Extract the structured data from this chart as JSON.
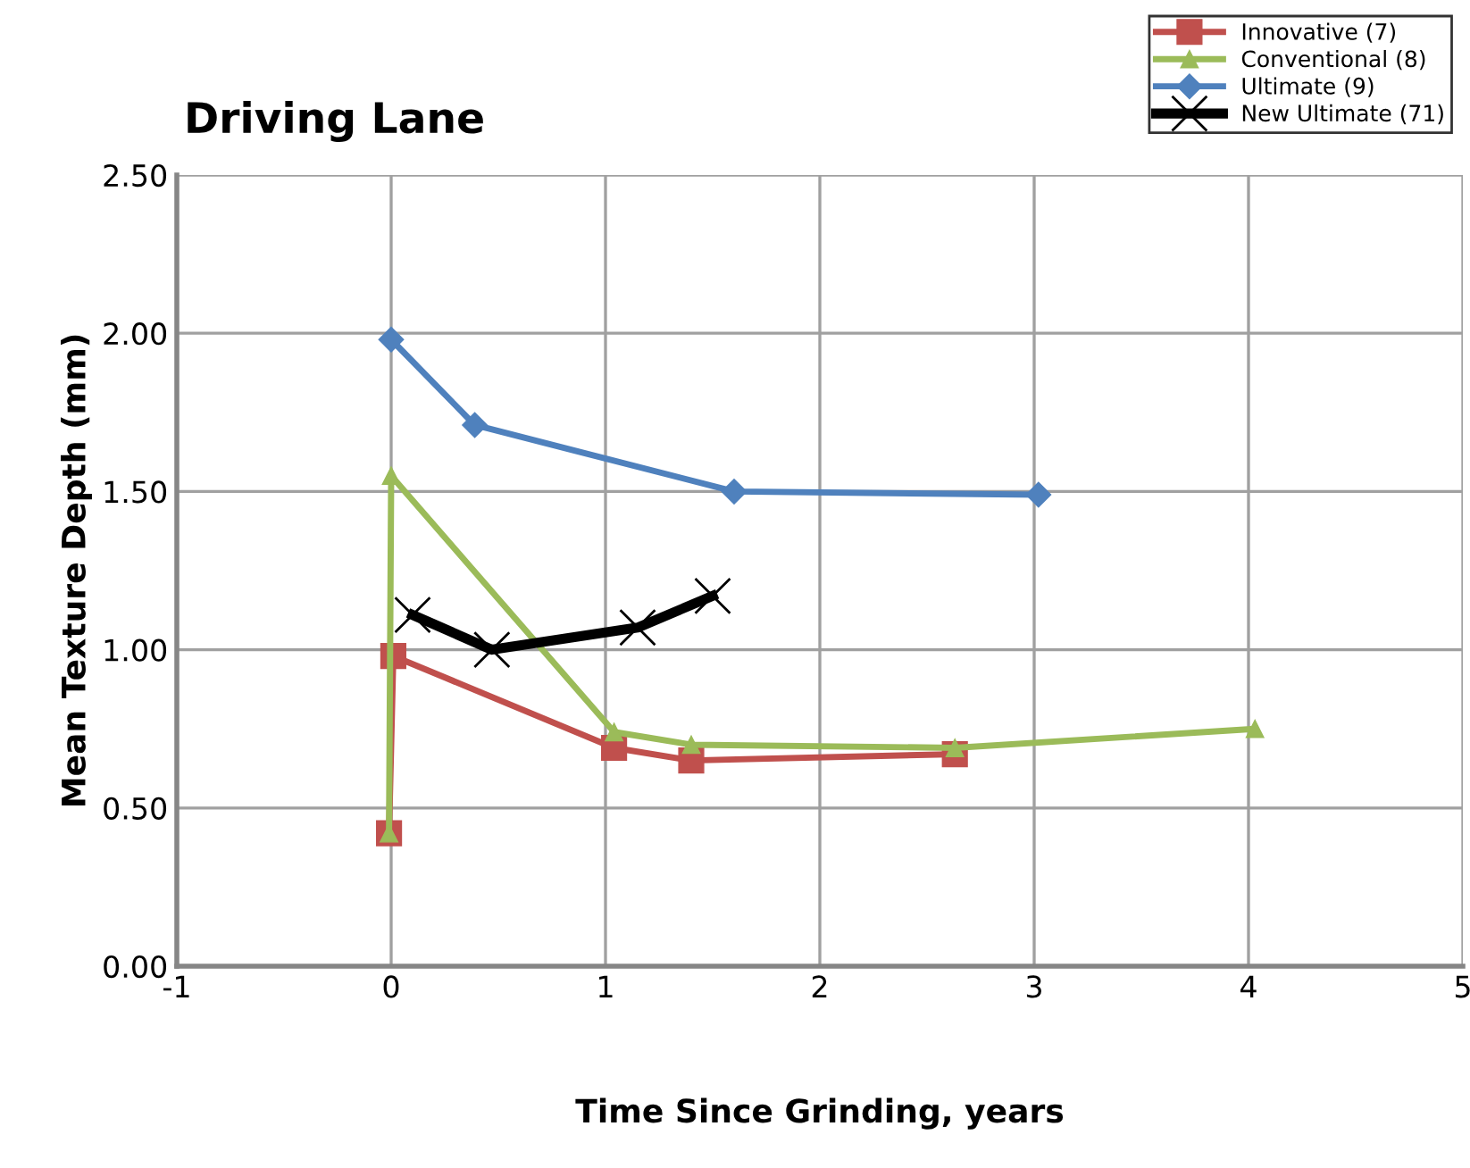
{
  "chart_data": {
    "type": "line",
    "title": "Driving Lane",
    "xlabel": "Time Since Grinding, years",
    "ylabel": "Mean Texture Depth (mm)",
    "xlim": [
      -1,
      5
    ],
    "xticks": [
      -1,
      0,
      1,
      2,
      3,
      4,
      5
    ],
    "ylim": [
      0,
      2.5
    ],
    "yticks": [
      {
        "value": 0,
        "label": "0.00"
      },
      {
        "value": 0.5,
        "label": "0.50"
      },
      {
        "value": 1,
        "label": "1.00"
      },
      {
        "value": 1.5,
        "label": "1.50"
      },
      {
        "value": 2,
        "label": "2.00"
      },
      {
        "value": 2.5,
        "label": "2.50"
      }
    ],
    "grid": true,
    "legend": "top right",
    "series": [
      {
        "name": "Innovative (7)",
        "color": "#c0504d",
        "marker": "square",
        "x": [
          -0.01,
          0.01,
          1.04,
          1.4,
          2.63
        ],
        "values": [
          0.42,
          0.98,
          0.69,
          0.65,
          0.67
        ]
      },
      {
        "name": "Conventional (8)",
        "color": "#9bbb59",
        "marker": "triangle",
        "x": [
          -0.01,
          0.0,
          1.04,
          1.4,
          2.63,
          4.03
        ],
        "values": [
          0.42,
          1.55,
          0.74,
          0.7,
          0.69,
          0.75
        ]
      },
      {
        "name": "Ultimate (9)",
        "color": "#4f81bd",
        "marker": "diamond",
        "x": [
          0.0,
          0.39,
          1.6,
          3.02
        ],
        "values": [
          1.98,
          1.71,
          1.5,
          1.49
        ]
      },
      {
        "name": "New Ultimate (71)",
        "color": "#000000",
        "marker": "cross",
        "x": [
          0.1,
          0.47,
          1.15,
          1.5
        ],
        "values": [
          1.11,
          1.0,
          1.07,
          1.17
        ]
      }
    ]
  }
}
